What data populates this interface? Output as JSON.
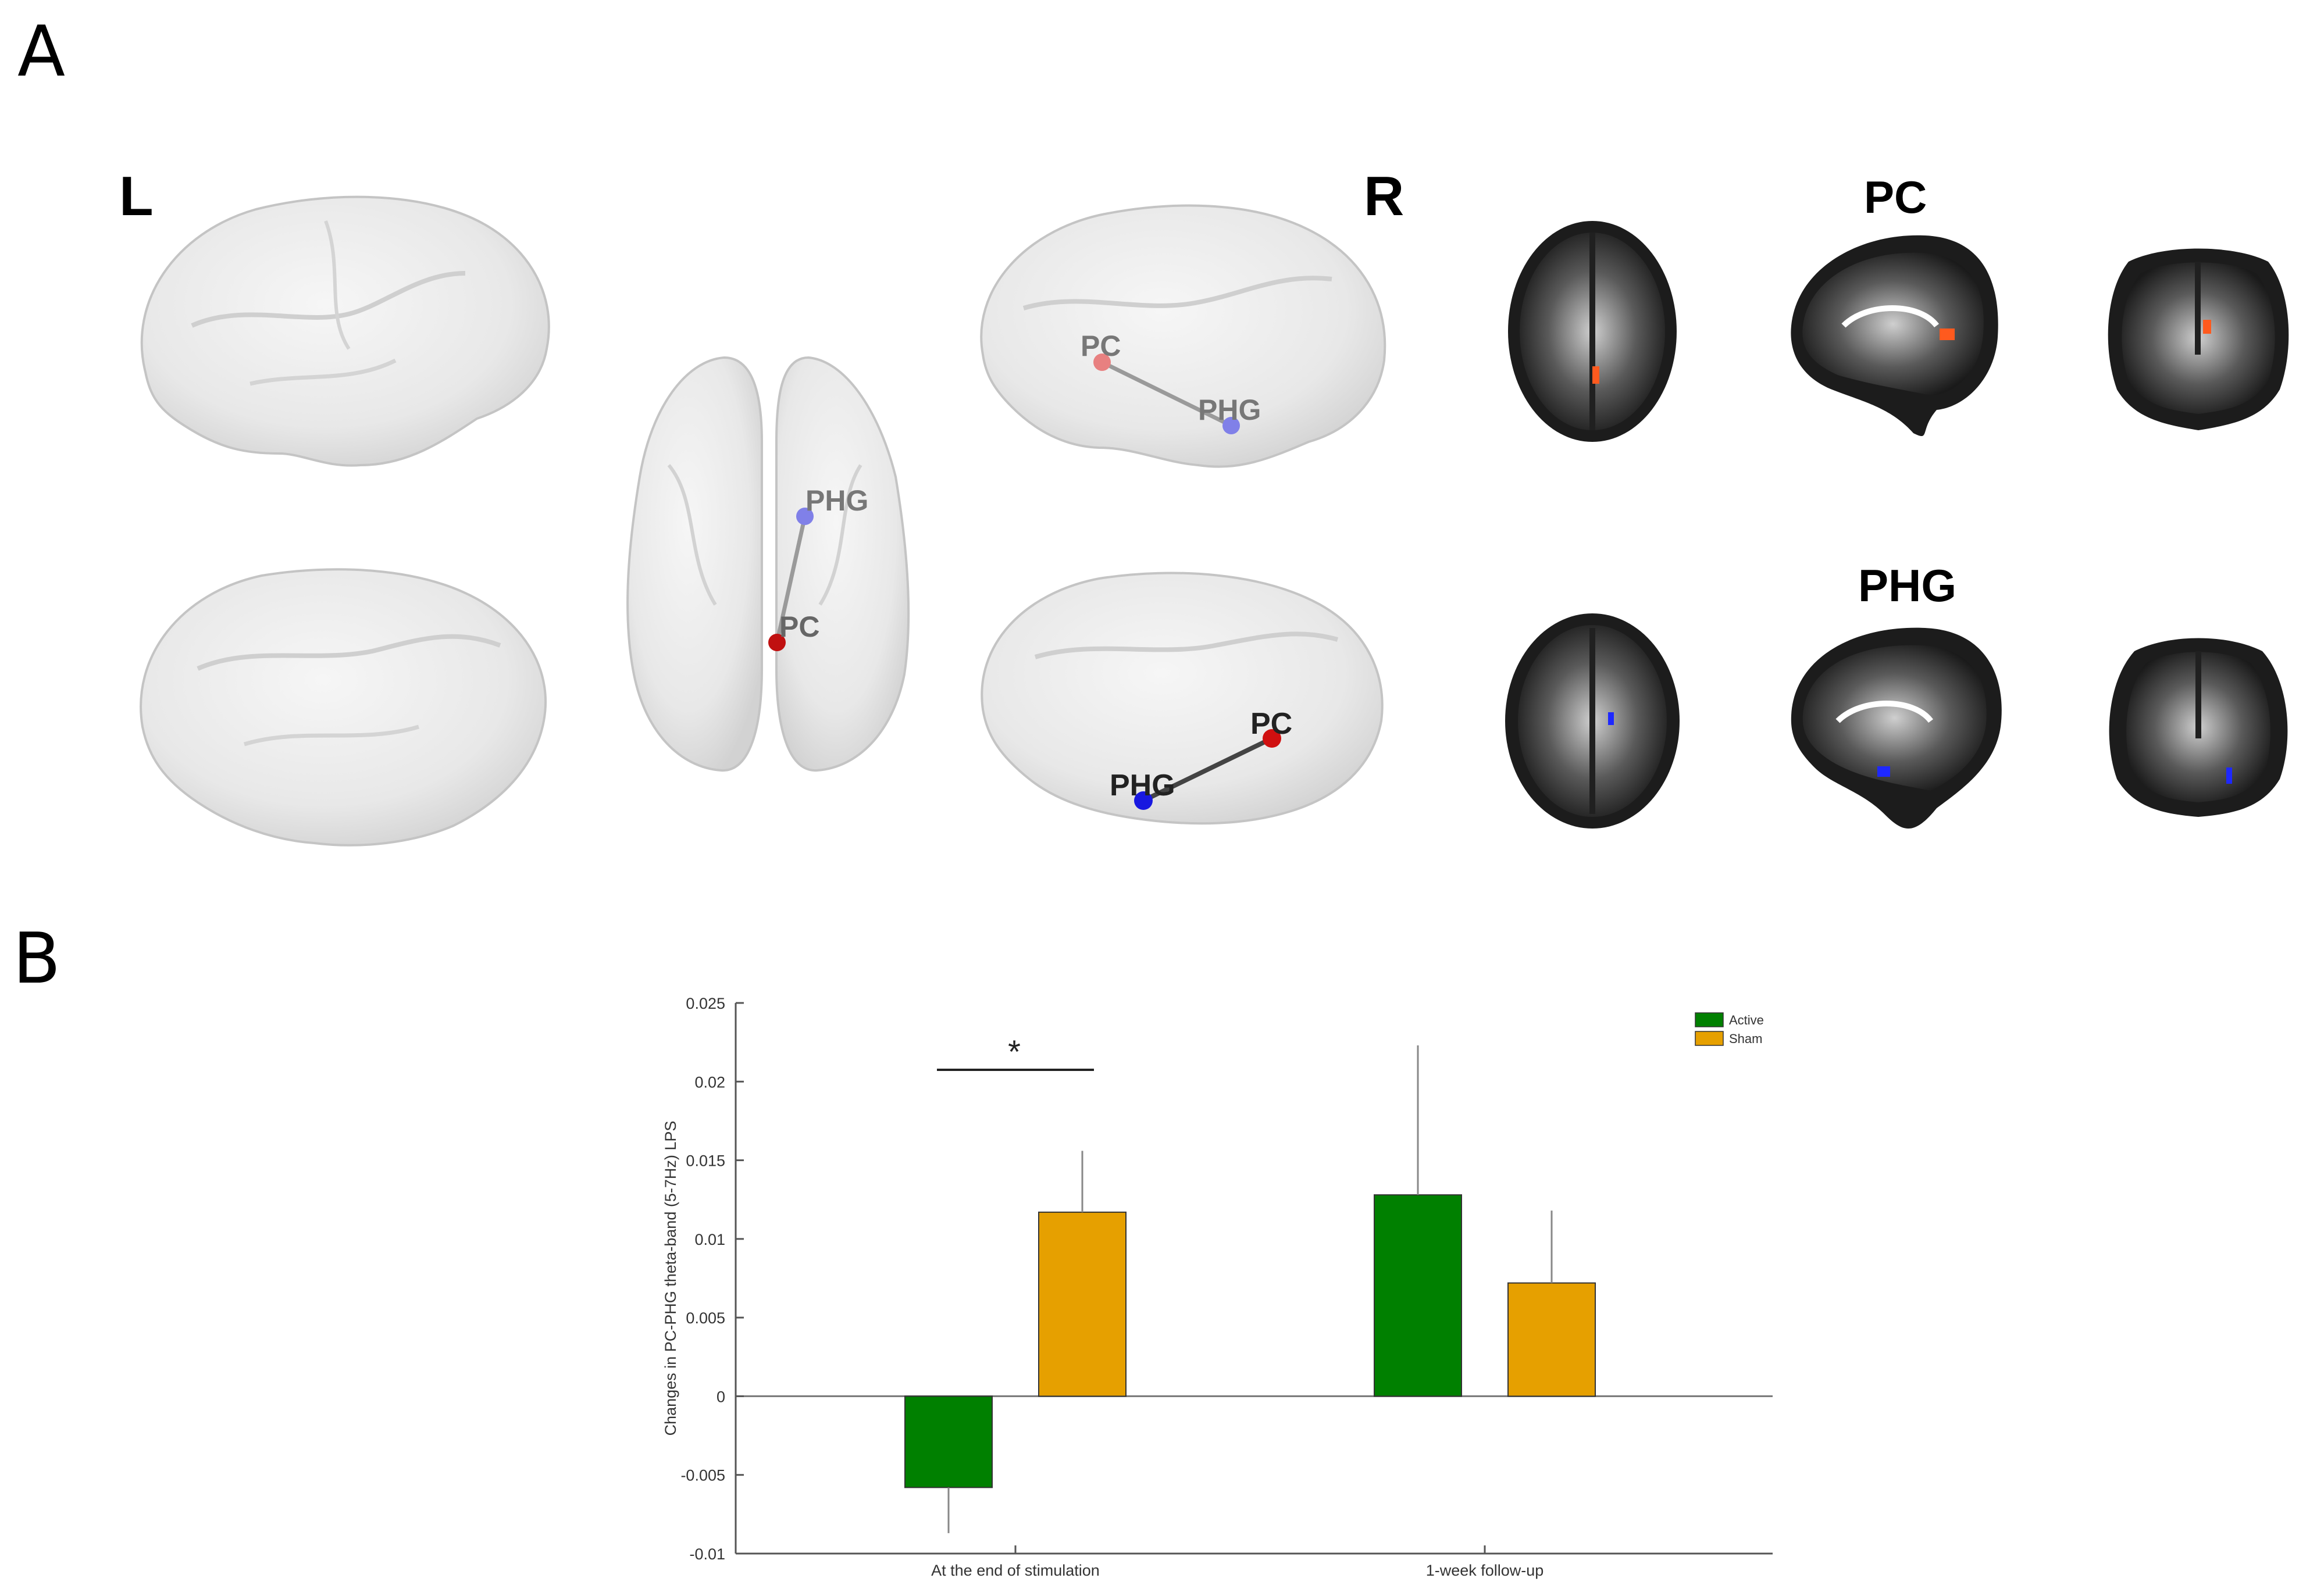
{
  "panels": {
    "a_label": "A",
    "b_label": "B"
  },
  "brain_views": {
    "left_label": "L",
    "right_label": "R",
    "nodes": {
      "pc": "PC",
      "phg": "PHG"
    },
    "colors": {
      "pc_node": "#d01010",
      "phg_node": "#1818e0",
      "brain_surface": "#e9e9e9"
    }
  },
  "slices": {
    "pc_title": "PC",
    "phg_title": "PHG",
    "colors": {
      "pc_blob": "#ff5a1e",
      "phg_blob": "#1e28ff"
    }
  },
  "chart_data": {
    "type": "bar",
    "categories": [
      "At the end of stimulation",
      "1-week follow-up"
    ],
    "series": [
      {
        "name": "Active",
        "color": "#008000",
        "values": [
          -0.0058,
          0.0128
        ],
        "errors": [
          0.0029,
          0.0095
        ]
      },
      {
        "name": "Sham",
        "color": "#e6a000",
        "values": [
          0.0117,
          0.0072
        ],
        "errors": [
          0.0039,
          0.0046
        ]
      }
    ],
    "ylabel": "Changes in PC-PHG theta-band (5-7Hz) LPS",
    "xlabel": "",
    "ylim": [
      -0.01,
      0.025
    ],
    "yticks": [
      -0.01,
      -0.005,
      0,
      0.005,
      0.01,
      0.015,
      0.02,
      0.025
    ],
    "ytick_labels": [
      "-0.01",
      "-0.005",
      "0",
      "0.005",
      "0.01",
      "0.015",
      "0.02",
      "0.025"
    ],
    "significance": {
      "label": "*",
      "category_index": 0
    },
    "legend_position": "top-right",
    "grid": false
  }
}
